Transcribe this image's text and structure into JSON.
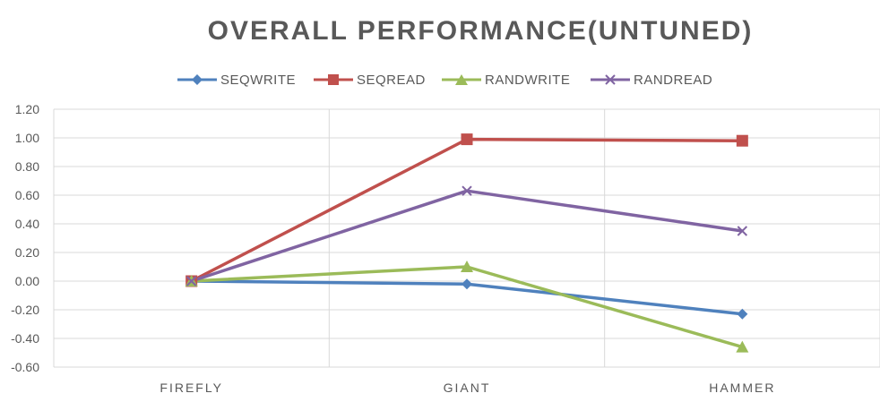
{
  "chart_data": {
    "type": "line",
    "title": "OVERALL PERFORMANCE(UNTUNED)",
    "categories": [
      "FIREFLY",
      "GIANT",
      "HAMMER"
    ],
    "ylim": [
      -0.6,
      1.2
    ],
    "y_ticks": [
      "1.20",
      "1.00",
      "0.80",
      "0.60",
      "0.40",
      "0.20",
      "0.00",
      "-0.20",
      "-0.40",
      "-0.60"
    ],
    "grid": true,
    "legend_position": "top",
    "series": [
      {
        "name": "SEQWRITE",
        "color": "#4F81BD",
        "marker": "diamond",
        "values": [
          0.0,
          -0.02,
          -0.23
        ]
      },
      {
        "name": "SEQREAD",
        "color": "#C0504D",
        "marker": "square",
        "values": [
          0.0,
          0.99,
          0.98
        ]
      },
      {
        "name": "RANDWRITE",
        "color": "#9BBB59",
        "marker": "triangle",
        "values": [
          0.0,
          0.1,
          -0.46
        ]
      },
      {
        "name": "RANDREAD",
        "color": "#8064A2",
        "marker": "x",
        "values": [
          0.0,
          0.63,
          0.35
        ]
      }
    ]
  }
}
